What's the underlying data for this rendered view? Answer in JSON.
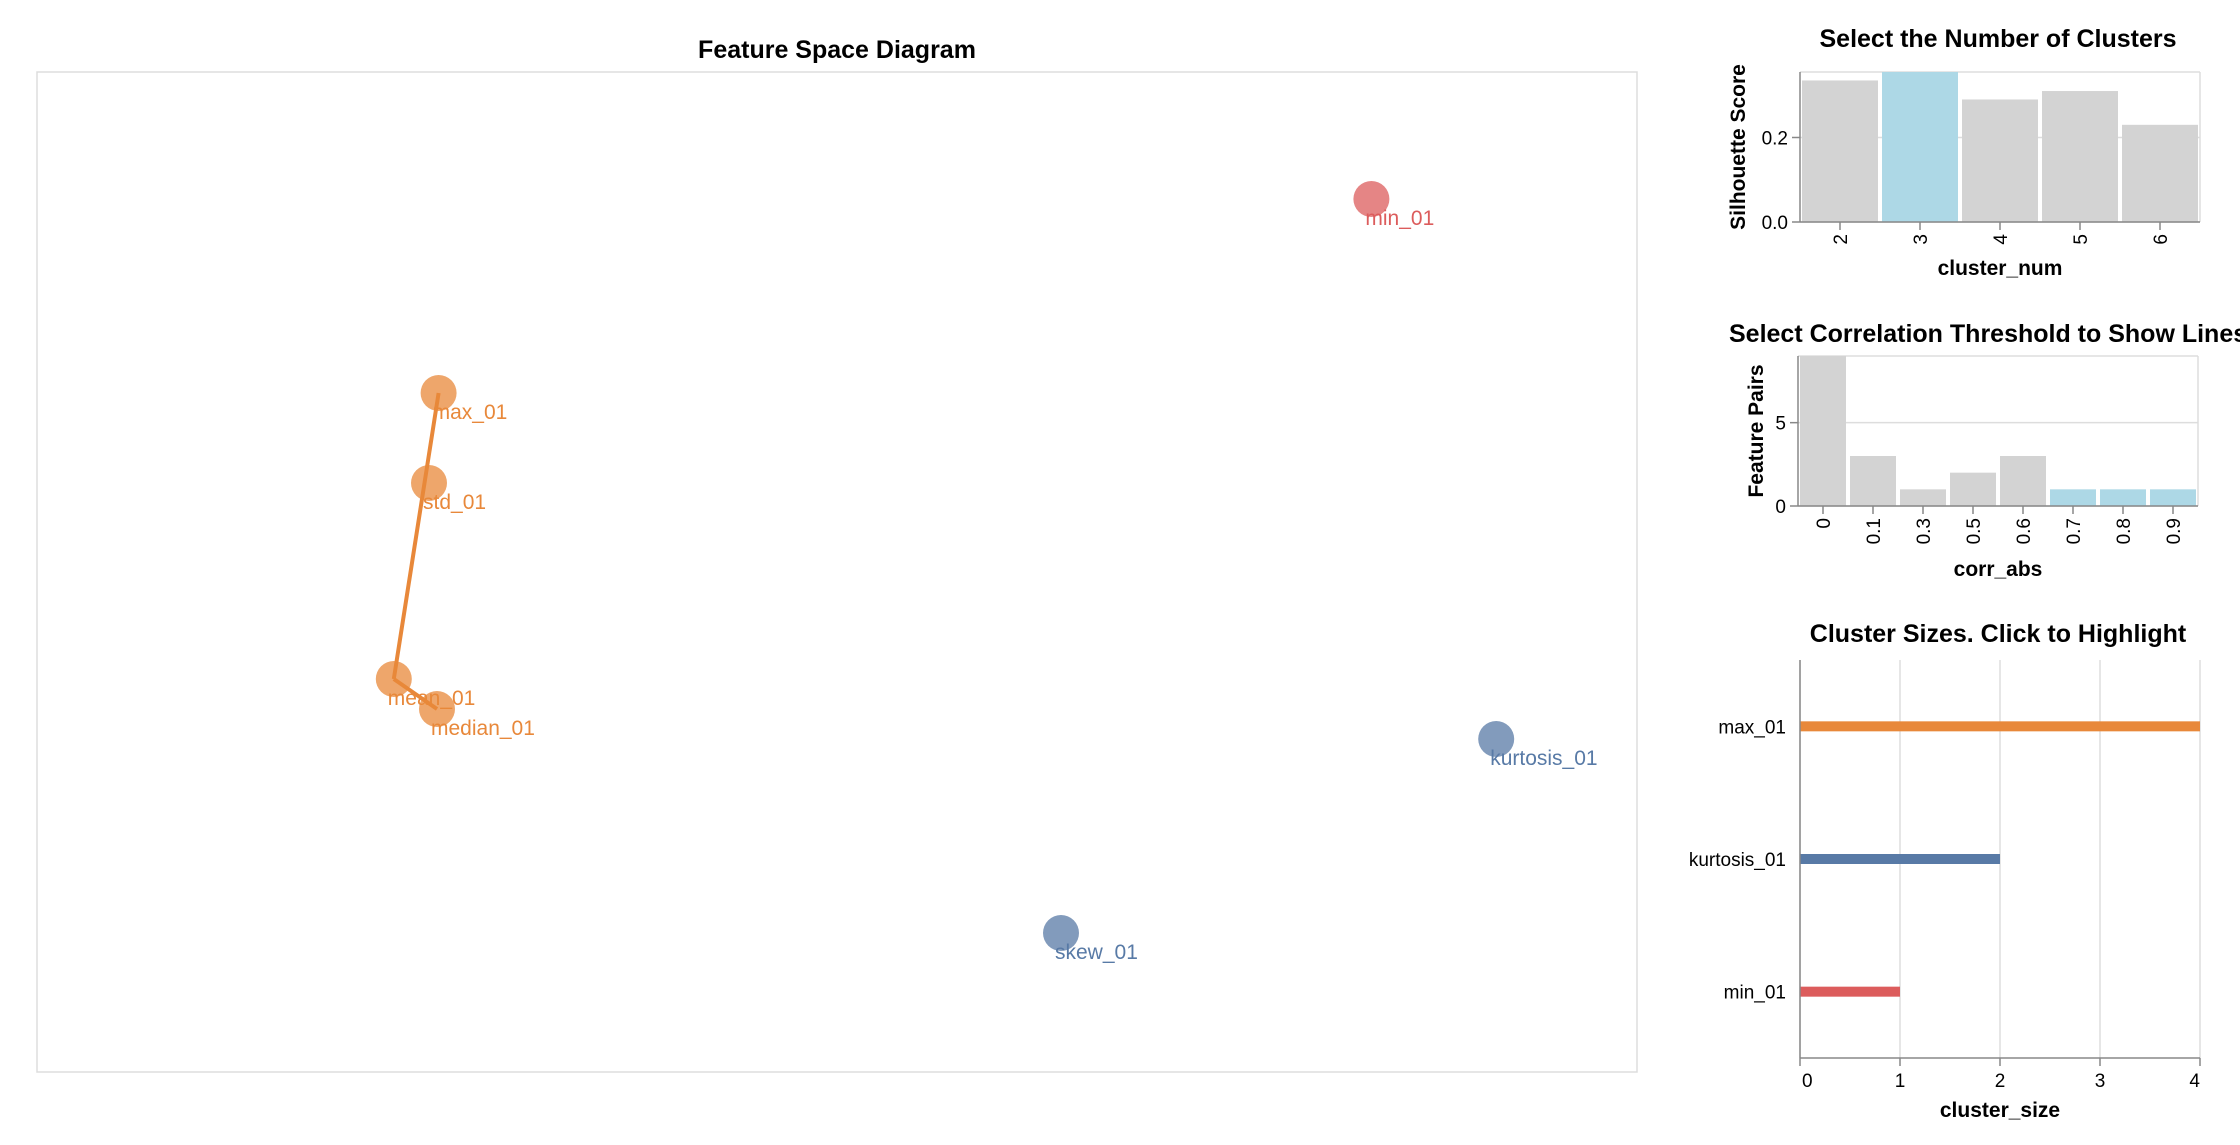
{
  "chart_data": [
    {
      "type": "scatter",
      "title": "Feature Space Diagram",
      "colors": {
        "orange": "#e8883a",
        "red": "#dc5c5c",
        "blue": "#587aa6"
      },
      "points": [
        {
          "label": "min_01",
          "x": 0.834,
          "y": 0.873,
          "color": "red"
        },
        {
          "label": "max_01",
          "x": 0.251,
          "y": 0.679,
          "color": "orange"
        },
        {
          "label": "std_01",
          "x": 0.245,
          "y": 0.589,
          "color": "orange"
        },
        {
          "label": "mean_01",
          "x": 0.223,
          "y": 0.393,
          "color": "orange"
        },
        {
          "label": "median_01",
          "x": 0.25,
          "y": 0.363,
          "color": "orange"
        },
        {
          "label": "kurtosis_01",
          "x": 0.912,
          "y": 0.333,
          "color": "blue"
        },
        {
          "label": "skew_01",
          "x": 0.64,
          "y": 0.139,
          "color": "blue"
        }
      ],
      "links": [
        {
          "from": "max_01",
          "to": "mean_01"
        },
        {
          "from": "mean_01",
          "to": "median_01"
        }
      ]
    },
    {
      "type": "bar",
      "title": "Select the Number of Clusters",
      "xlabel": "cluster_num",
      "ylabel": "Silhouette Score",
      "categories": [
        "2",
        "3",
        "4",
        "5",
        "6"
      ],
      "values": [
        0.335,
        0.355,
        0.29,
        0.31,
        0.23
      ],
      "selected": "3",
      "ylim": [
        0,
        0.355
      ],
      "yticks": [
        "0.0",
        "0.2"
      ],
      "colors": {
        "bar": "#d3d3d3",
        "selected": "#add8e6"
      }
    },
    {
      "type": "bar",
      "title": "Select Correlation Threshold to Show Lines",
      "xlabel": "corr_abs",
      "ylabel": "Feature Pairs",
      "categories": [
        "0",
        "0.1",
        "0.3",
        "0.5",
        "0.6",
        "0.7",
        "0.8",
        "0.9"
      ],
      "values": [
        9,
        3,
        1,
        2,
        3,
        1,
        1,
        1
      ],
      "selected_from": "0.7",
      "ylim": [
        0,
        9
      ],
      "yticks": [
        "0",
        "5"
      ],
      "colors": {
        "bar": "#d3d3d3",
        "selected": "#add8e6"
      }
    },
    {
      "type": "bar",
      "orientation": "horizontal",
      "title": "Cluster Sizes. Click to Highlight",
      "xlabel": "cluster_size",
      "categories": [
        "max_01",
        "kurtosis_01",
        "min_01"
      ],
      "values": [
        4,
        2,
        1
      ],
      "bar_colors": [
        "#e8883a",
        "#587aa6",
        "#dc5c5c"
      ],
      "xlim": [
        0,
        4
      ],
      "xticks": [
        "0",
        "1",
        "2",
        "3",
        "4"
      ],
      "grid": true
    }
  ]
}
